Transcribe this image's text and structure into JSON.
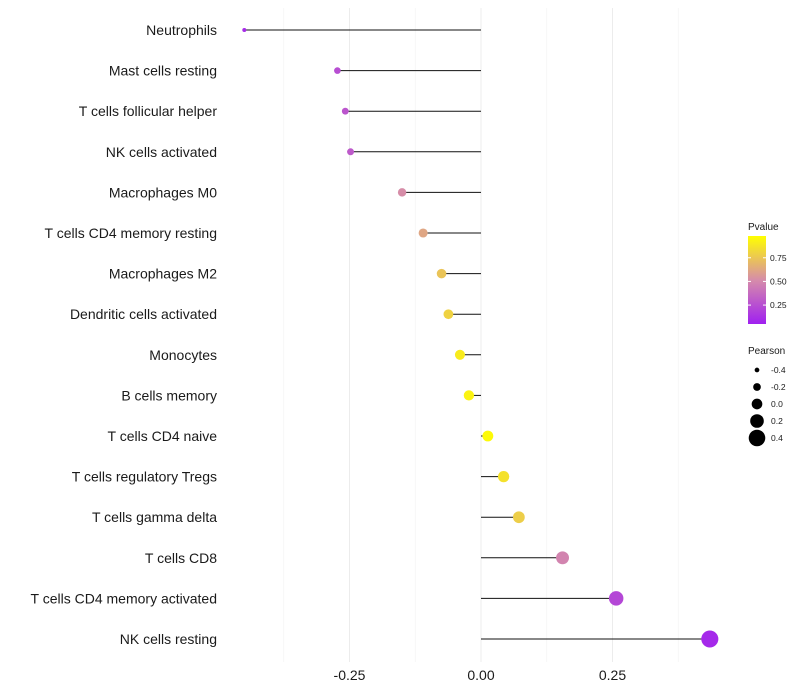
{
  "chart_data": {
    "type": "lollipop",
    "title": "",
    "xlabel": "",
    "ylabel": "",
    "xlim": [
      -0.46,
      0.47
    ],
    "x_ticks": [
      -0.25,
      0.0,
      0.25
    ],
    "x_tick_labels": [
      "-0.25",
      "0.00",
      "0.25"
    ],
    "grid": true,
    "categories": [
      "Neutrophils",
      "Mast cells resting",
      "T cells follicular helper",
      "NK cells activated",
      "Macrophages M0",
      "T cells CD4 memory resting",
      "Macrophages M2",
      "Dendritic cells activated",
      "Monocytes",
      "B cells memory",
      "T cells CD4 naive",
      "T cells regulatory  Tregs",
      "T cells gamma delta",
      "T cells CD8",
      "T cells CD4 memory activated",
      "NK cells resting"
    ],
    "pearson": [
      -0.45,
      -0.273,
      -0.258,
      -0.248,
      -0.15,
      -0.11,
      -0.075,
      -0.062,
      -0.04,
      -0.023,
      0.013,
      0.043,
      0.072,
      0.155,
      0.257,
      0.435
    ],
    "pvalue": [
      0.1,
      0.25,
      0.28,
      0.3,
      0.52,
      0.62,
      0.74,
      0.8,
      0.9,
      0.93,
      0.96,
      0.86,
      0.78,
      0.48,
      0.22,
      0.09
    ],
    "legend_color": {
      "title": "Pvalue",
      "ticks": [
        0.25,
        0.5,
        0.75
      ],
      "tick_labels": [
        "0.25",
        "0.50",
        "0.75"
      ],
      "low_color": "#a020f0",
      "high_color": "#ffff00"
    },
    "legend_size": {
      "title": "Pearson",
      "values": [
        -0.4,
        -0.2,
        0.0,
        0.2,
        0.4
      ],
      "labels": [
        "-0.4",
        "-0.2",
        "0.0",
        "0.2",
        "0.4"
      ]
    }
  }
}
